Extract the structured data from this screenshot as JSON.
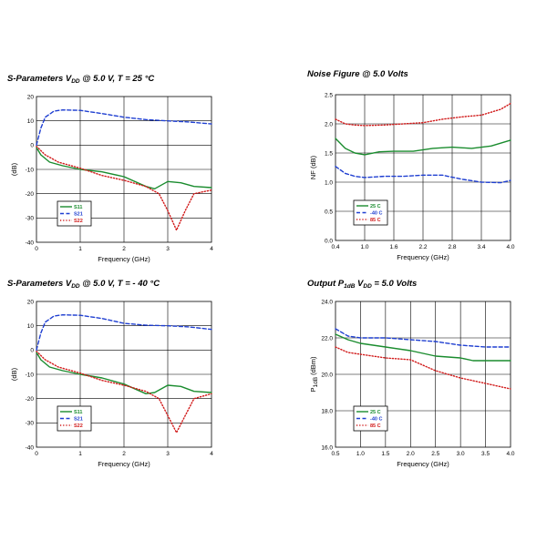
{
  "chart_data": [
    {
      "type": "line",
      "title": "S-Parameters V",
      "title_sub": "DD",
      "title_rest": " @ 5.0 V, T = 25 °C",
      "xlabel": "Frequency (GHz)",
      "ylabel": "(dB)",
      "xlim": [
        0,
        4
      ],
      "ylim": [
        -40,
        20
      ],
      "xticks": [
        "0",
        "1",
        "2",
        "3",
        "4"
      ],
      "yticks": [
        "-40",
        "-30",
        "-20",
        "-10",
        "0",
        "10",
        "20"
      ],
      "legend_position": "lower-left",
      "series": [
        {
          "name": "S11",
          "color": "#1a8c2e",
          "dash": "solid",
          "x": [
            0,
            0.1,
            0.3,
            0.6,
            1.0,
            1.5,
            2.0,
            2.5,
            2.7,
            3.0,
            3.3,
            3.6,
            4.0
          ],
          "y": [
            -1,
            -4,
            -7,
            -8.5,
            -10,
            -11,
            -13,
            -17,
            -18,
            -15,
            -15.5,
            -17,
            -17.5
          ]
        },
        {
          "name": "S21",
          "color": "#1f3fd1",
          "dash": "dash",
          "x": [
            0,
            0.1,
            0.2,
            0.4,
            0.6,
            1.0,
            1.5,
            2.0,
            2.5,
            3.0,
            3.5,
            4.0
          ],
          "y": [
            0,
            7,
            11.5,
            14,
            14.5,
            14.3,
            13,
            11.5,
            10.5,
            10,
            9.5,
            8.7
          ]
        },
        {
          "name": "S22",
          "color": "#d11a1a",
          "dash": "dot",
          "x": [
            0,
            0.2,
            0.5,
            1.0,
            1.5,
            2.0,
            2.5,
            2.8,
            3.0,
            3.2,
            3.4,
            3.6,
            4.0
          ],
          "y": [
            -0.5,
            -4,
            -7,
            -9.5,
            -12.5,
            -14.5,
            -17,
            -20,
            -27,
            -35,
            -27,
            -20,
            -18.5
          ]
        }
      ]
    },
    {
      "type": "line",
      "title": "Noise Figure @ 5.0 Volts",
      "xlabel": "Frequency (GHz)",
      "ylabel": "NF (dB)",
      "xlim": [
        0.4,
        4.0
      ],
      "ylim": [
        0,
        2.5
      ],
      "xticks": [
        "0.4",
        "1.0",
        "1.6",
        "2.2",
        "2.8",
        "3.4",
        "4.0"
      ],
      "yticks": [
        "0.0",
        "0.5",
        "1.0",
        "1.5",
        "2.0",
        "2.5"
      ],
      "legend_position": "lower-left",
      "series": [
        {
          "name": "25 C",
          "color": "#1a8c2e",
          "dash": "solid",
          "x": [
            0.4,
            0.6,
            0.8,
            1.0,
            1.3,
            1.6,
            2.0,
            2.4,
            2.8,
            3.2,
            3.6,
            4.0
          ],
          "y": [
            1.75,
            1.58,
            1.5,
            1.47,
            1.52,
            1.53,
            1.53,
            1.58,
            1.6,
            1.58,
            1.62,
            1.72
          ]
        },
        {
          "name": "-40 C",
          "color": "#1f3fd1",
          "dash": "dash",
          "x": [
            0.4,
            0.6,
            0.8,
            1.0,
            1.4,
            1.8,
            2.2,
            2.6,
            3.0,
            3.4,
            3.8,
            4.0
          ],
          "y": [
            1.27,
            1.15,
            1.1,
            1.08,
            1.1,
            1.1,
            1.12,
            1.12,
            1.05,
            1.0,
            0.99,
            1.03
          ]
        },
        {
          "name": "85 C",
          "color": "#d11a1a",
          "dash": "dot",
          "x": [
            0.4,
            0.6,
            0.8,
            1.0,
            1.4,
            1.8,
            2.2,
            2.6,
            3.0,
            3.4,
            3.8,
            4.0
          ],
          "y": [
            2.08,
            2.0,
            1.98,
            1.97,
            1.98,
            2.0,
            2.02,
            2.08,
            2.12,
            2.15,
            2.25,
            2.35
          ]
        }
      ]
    },
    {
      "type": "line",
      "title": "S-Parameters V",
      "title_sub": "DD",
      "title_rest": " @ 5.0 V, T = - 40 °C",
      "xlabel": "Frequency (GHz)",
      "ylabel": "(dB)",
      "xlim": [
        0,
        4
      ],
      "ylim": [
        -40,
        20
      ],
      "xticks": [
        "0",
        "1",
        "2",
        "3",
        "4"
      ],
      "yticks": [
        "-40",
        "-30",
        "-20",
        "-10",
        "0",
        "10",
        "20"
      ],
      "legend_position": "lower-left",
      "series": [
        {
          "name": "S11",
          "color": "#1a8c2e",
          "dash": "solid",
          "x": [
            0,
            0.1,
            0.3,
            0.6,
            1.0,
            1.5,
            2.0,
            2.5,
            2.7,
            3.0,
            3.3,
            3.6,
            4.0
          ],
          "y": [
            -1,
            -4,
            -7,
            -8.5,
            -10,
            -11.5,
            -14,
            -18,
            -17.5,
            -14.5,
            -15,
            -17,
            -17.5
          ]
        },
        {
          "name": "S21",
          "color": "#1f3fd1",
          "dash": "dash",
          "x": [
            0,
            0.1,
            0.2,
            0.4,
            0.6,
            1.0,
            1.5,
            2.0,
            2.5,
            3.0,
            3.5,
            4.0
          ],
          "y": [
            0,
            7,
            11.5,
            14,
            14.5,
            14.3,
            13,
            11,
            10.2,
            10,
            9.5,
            8.5
          ]
        },
        {
          "name": "S22",
          "color": "#d11a1a",
          "dash": "dot",
          "x": [
            0,
            0.2,
            0.5,
            1.0,
            1.5,
            2.0,
            2.5,
            2.8,
            3.0,
            3.2,
            3.4,
            3.6,
            4.0
          ],
          "y": [
            -0.5,
            -4,
            -7,
            -9.5,
            -12.5,
            -14.5,
            -17,
            -20,
            -27,
            -34,
            -27,
            -20,
            -18
          ]
        }
      ]
    },
    {
      "type": "line",
      "title": "Output P",
      "title_sub": "1dB",
      "title_rest": " V",
      "title_sub2": "DD",
      "title_rest2": " = 5.0 Volts",
      "xlabel": "Frequency (GHz)",
      "ylabel": "P",
      "ylabel_sub": "1dB",
      "ylabel_rest": " (dBm)",
      "xlim": [
        0.5,
        4.0
      ],
      "ylim": [
        16,
        24
      ],
      "xticks": [
        "0.5",
        "1.0",
        "1.5",
        "2.0",
        "2.5",
        "3.0",
        "3.5",
        "4.0"
      ],
      "yticks": [
        "16.0",
        "18.0",
        "20.0",
        "22.0",
        "24.0"
      ],
      "legend_position": "lower-left",
      "series": [
        {
          "name": "25 C",
          "color": "#1a8c2e",
          "dash": "solid",
          "x": [
            0.5,
            0.75,
            1.0,
            1.5,
            2.0,
            2.5,
            3.0,
            3.25,
            3.5,
            4.0
          ],
          "y": [
            22.2,
            21.9,
            21.7,
            21.5,
            21.3,
            21.0,
            20.9,
            20.75,
            20.75,
            20.75
          ]
        },
        {
          "name": "-40 C",
          "color": "#1f3fd1",
          "dash": "dash",
          "x": [
            0.5,
            0.75,
            1.0,
            1.5,
            2.0,
            2.5,
            3.0,
            3.5,
            4.0
          ],
          "y": [
            22.5,
            22.1,
            22.0,
            22.0,
            21.9,
            21.8,
            21.6,
            21.5,
            21.5
          ]
        },
        {
          "name": "85 C",
          "color": "#d11a1a",
          "dash": "dot",
          "x": [
            0.5,
            0.75,
            1.0,
            1.5,
            2.0,
            2.5,
            3.0,
            3.5,
            4.0
          ],
          "y": [
            21.5,
            21.2,
            21.1,
            20.9,
            20.8,
            20.2,
            19.8,
            19.5,
            19.2
          ]
        }
      ]
    }
  ]
}
